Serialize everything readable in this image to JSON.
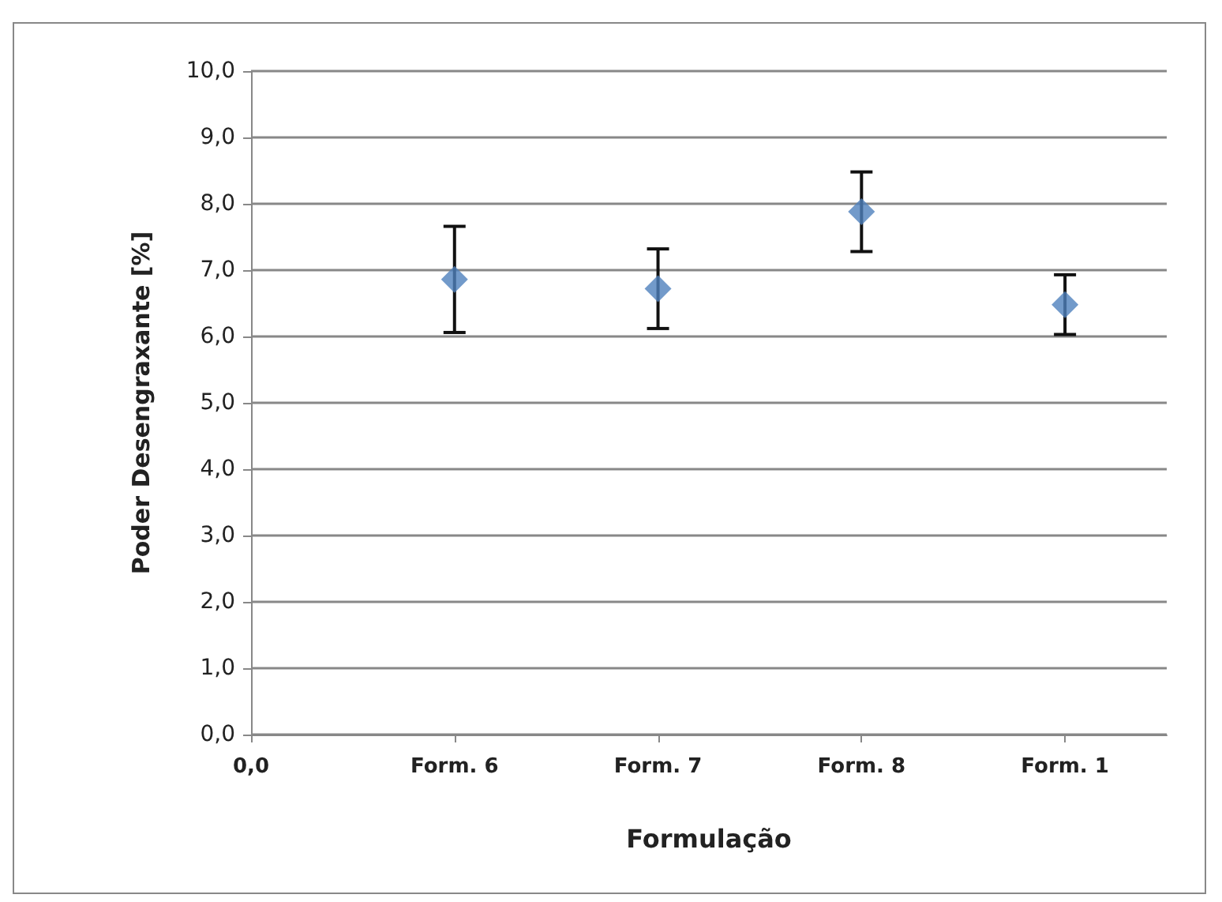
{
  "chart_data": {
    "type": "scatter",
    "xlabel": "Formulação",
    "ylabel": "Poder Desengraxante [%]",
    "categories": [
      "0,0",
      "Form. 6",
      "Form. 7",
      "Form. 8",
      "Form. 1"
    ],
    "values": [
      null,
      6.86,
      6.72,
      7.88,
      6.48
    ],
    "errors": [
      null,
      0.8,
      0.6,
      0.6,
      0.45
    ],
    "color": "#4f81bd",
    "marker": "diamond",
    "ylim": [
      0,
      10
    ],
    "yticks": [
      {
        "value": 0,
        "label": "0,0"
      },
      {
        "value": 1,
        "label": "1,0"
      },
      {
        "value": 2,
        "label": "2,0"
      },
      {
        "value": 3,
        "label": "3,0"
      },
      {
        "value": 4,
        "label": "4,0"
      },
      {
        "value": 5,
        "label": "5,0"
      },
      {
        "value": 6,
        "label": "6,0"
      },
      {
        "value": 7,
        "label": "7,0"
      },
      {
        "value": 8,
        "label": "8,0"
      },
      {
        "value": 9,
        "label": "9,0"
      },
      {
        "value": 10,
        "label": "10,0"
      }
    ],
    "grid": "y"
  }
}
